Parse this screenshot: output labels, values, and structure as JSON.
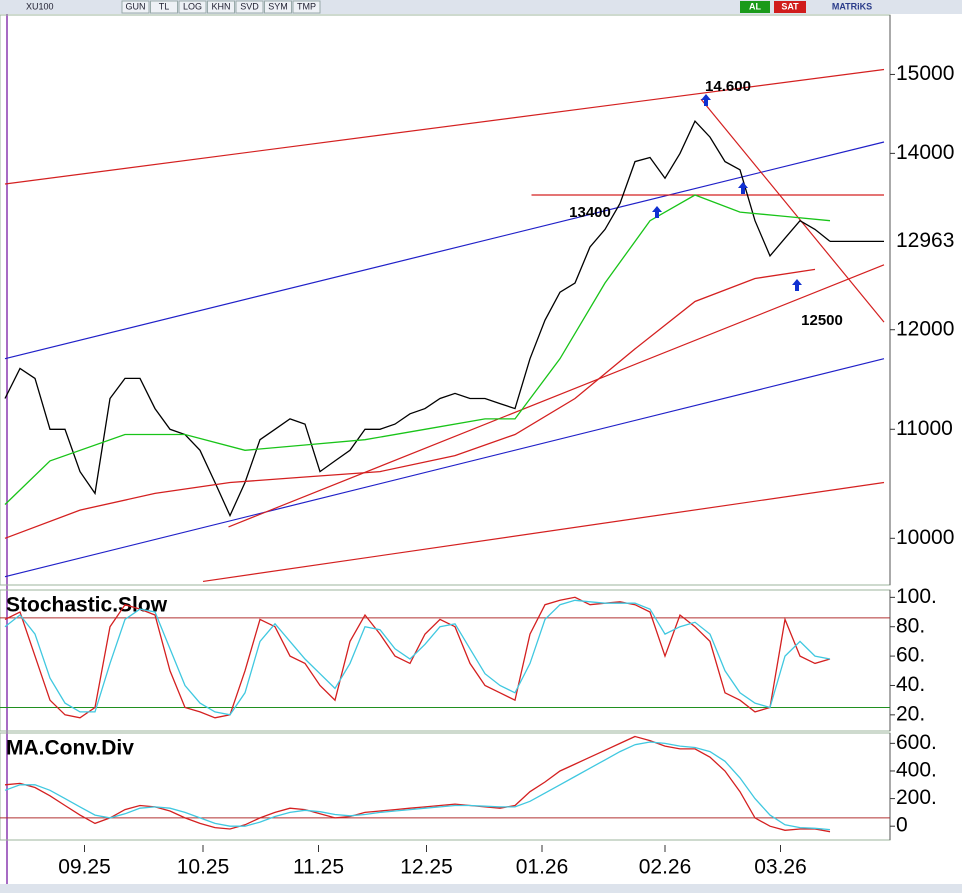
{
  "toolbar": {
    "symbol": "XU100",
    "buttons": [
      "GUN",
      "TL",
      "LOG",
      "KHN",
      "SVD",
      "SYM",
      "TMP"
    ],
    "buy": "AL",
    "sell": "SAT",
    "brand": "MATRiKS"
  },
  "chart_data": [
    {
      "type": "line",
      "log_scale": true,
      "xlim": [
        0,
        59
      ],
      "ylim": [
        9600,
        15800
      ],
      "yticks": [
        10000,
        11000,
        12000,
        14000,
        15000
      ],
      "last_value": 12963,
      "annotations": [
        "14.600",
        "13400",
        "12500"
      ],
      "series": [
        {
          "color": "#000000",
          "values": [
            11300,
            11600,
            11500,
            11000,
            11000,
            10600,
            10400,
            11300,
            11500,
            11500,
            11200,
            11000,
            10950,
            10800,
            10500,
            10200,
            10500,
            10900,
            11000,
            11100,
            11050,
            10600,
            10700,
            10800,
            11000,
            11000,
            11050,
            11150,
            11200,
            11300,
            11350,
            11300,
            11300,
            11250,
            11200,
            11700,
            12100,
            12400,
            12500,
            12900,
            13100,
            13400,
            13900,
            13950,
            13700,
            14000,
            14400,
            14200,
            13900,
            13800,
            13200,
            12800,
            13000,
            13200,
            13100,
            12963
          ]
        },
        {
          "color": "#19c419",
          "x": [
            0,
            3,
            8,
            12,
            16,
            20,
            24,
            28,
            32,
            34,
            37,
            40,
            43,
            46,
            49,
            52,
            55
          ],
          "values": [
            10300,
            10700,
            10950,
            10950,
            10800,
            10850,
            10900,
            11000,
            11100,
            11100,
            11700,
            12500,
            13200,
            13500,
            13300,
            13250,
            13200
          ]
        },
        {
          "color": "#d42020",
          "x": [
            0,
            5,
            10,
            15,
            20,
            25,
            30,
            34,
            38,
            42,
            46,
            50,
            54
          ],
          "values": [
            10000,
            10250,
            10400,
            10500,
            10550,
            10600,
            10750,
            10950,
            11300,
            11800,
            12300,
            12550,
            12650
          ]
        }
      ],
      "trendlines": [
        {
          "color": "#d42020",
          "x": [
            0,
            58.6
          ],
          "y": [
            13630,
            15065
          ]
        },
        {
          "color": "#2020c8",
          "x": [
            0,
            58.6
          ],
          "y": [
            11700,
            14140
          ]
        },
        {
          "color": "#2020c8",
          "x": [
            0,
            58.6
          ],
          "y": [
            9670,
            11700
          ]
        },
        {
          "color": "#d42020",
          "x": [
            13.2,
            58.6
          ],
          "y": [
            9630,
            10500
          ]
        },
        {
          "color": "#d42020",
          "x": [
            14.9,
            58.6
          ],
          "y": [
            10100,
            12700
          ]
        },
        {
          "color": "#d42020",
          "x": [
            46.4,
            58.6
          ],
          "y": [
            14680,
            12080
          ]
        },
        {
          "color": "#d42020",
          "x": [
            35.1,
            58.6
          ],
          "y": [
            13500,
            13500
          ]
        },
        {
          "color": "#000000",
          "x": [
            55,
            58.6
          ],
          "y": [
            12963,
            12963
          ]
        }
      ]
    },
    {
      "type": "line",
      "title": "Stochastic.Slow",
      "xlim": [
        0,
        59
      ],
      "ylim": [
        9,
        105
      ],
      "yticks": [
        {
          "value": 100,
          "label": "100."
        },
        {
          "value": 80,
          "label": "80."
        },
        {
          "value": 60,
          "label": "60."
        },
        {
          "value": 40,
          "label": "40."
        },
        {
          "value": 20,
          "label": "20."
        }
      ],
      "levels": [
        {
          "value": 86,
          "color": "#b03030"
        },
        {
          "value": 25,
          "color": "#209020"
        }
      ],
      "series": [
        {
          "color": "#d42020",
          "values": [
            85,
            90,
            60,
            30,
            20,
            18,
            25,
            80,
            95,
            92,
            88,
            50,
            25,
            22,
            18,
            20,
            50,
            85,
            80,
            60,
            55,
            40,
            30,
            70,
            88,
            75,
            60,
            55,
            75,
            85,
            80,
            55,
            40,
            35,
            30,
            75,
            95,
            98,
            100,
            95,
            96,
            97,
            95,
            90,
            60,
            88,
            80,
            70,
            35,
            30,
            22,
            25,
            85,
            60,
            55,
            58
          ]
        },
        {
          "color": "#40c8e0",
          "values": [
            80,
            88,
            75,
            45,
            28,
            22,
            22,
            55,
            85,
            92,
            90,
            65,
            40,
            28,
            22,
            20,
            35,
            70,
            82,
            70,
            58,
            48,
            38,
            55,
            80,
            78,
            65,
            58,
            68,
            80,
            82,
            65,
            48,
            40,
            35,
            55,
            85,
            95,
            98,
            97,
            96,
            96,
            96,
            92,
            75,
            80,
            83,
            75,
            50,
            35,
            28,
            25,
            60,
            70,
            60,
            58
          ]
        }
      ]
    },
    {
      "type": "line",
      "title": "MA.Conv.Div",
      "xlim": [
        0,
        59
      ],
      "ylim": [
        -100,
        675
      ],
      "yticks": [
        {
          "value": 600,
          "label": "600."
        },
        {
          "value": 400,
          "label": "400."
        },
        {
          "value": 200,
          "label": "200."
        },
        0
      ],
      "levels": [
        {
          "value": 60,
          "color": "#b03030"
        }
      ],
      "xticks": [
        {
          "value": 5.3,
          "label": "09.25"
        },
        {
          "value": 13.2,
          "label": "10.25"
        },
        {
          "value": 20.9,
          "label": "11.25"
        },
        {
          "value": 28.1,
          "label": "12.25"
        },
        {
          "value": 35.8,
          "label": "01.26"
        },
        {
          "value": 44,
          "label": "02.26"
        },
        {
          "value": 51.7,
          "label": "03.26"
        }
      ],
      "series": [
        {
          "color": "#d42020",
          "values": [
            300,
            310,
            280,
            220,
            150,
            80,
            20,
            60,
            120,
            150,
            140,
            110,
            60,
            20,
            -10,
            -20,
            10,
            60,
            100,
            130,
            120,
            90,
            60,
            70,
            100,
            110,
            120,
            130,
            140,
            150,
            160,
            150,
            140,
            130,
            150,
            250,
            320,
            400,
            450,
            500,
            550,
            600,
            650,
            620,
            580,
            560,
            560,
            500,
            400,
            250,
            60,
            0,
            -30,
            -20,
            -20,
            -40
          ]
        },
        {
          "color": "#40c8e0",
          "values": [
            260,
            300,
            300,
            260,
            200,
            140,
            80,
            60,
            90,
            130,
            140,
            130,
            100,
            60,
            20,
            0,
            0,
            30,
            70,
            100,
            115,
            105,
            85,
            75,
            85,
            100,
            110,
            120,
            130,
            140,
            150,
            150,
            145,
            140,
            140,
            180,
            240,
            300,
            360,
            420,
            480,
            540,
            590,
            610,
            600,
            580,
            570,
            540,
            470,
            350,
            200,
            80,
            10,
            -10,
            -15,
            -25
          ]
        }
      ]
    }
  ]
}
